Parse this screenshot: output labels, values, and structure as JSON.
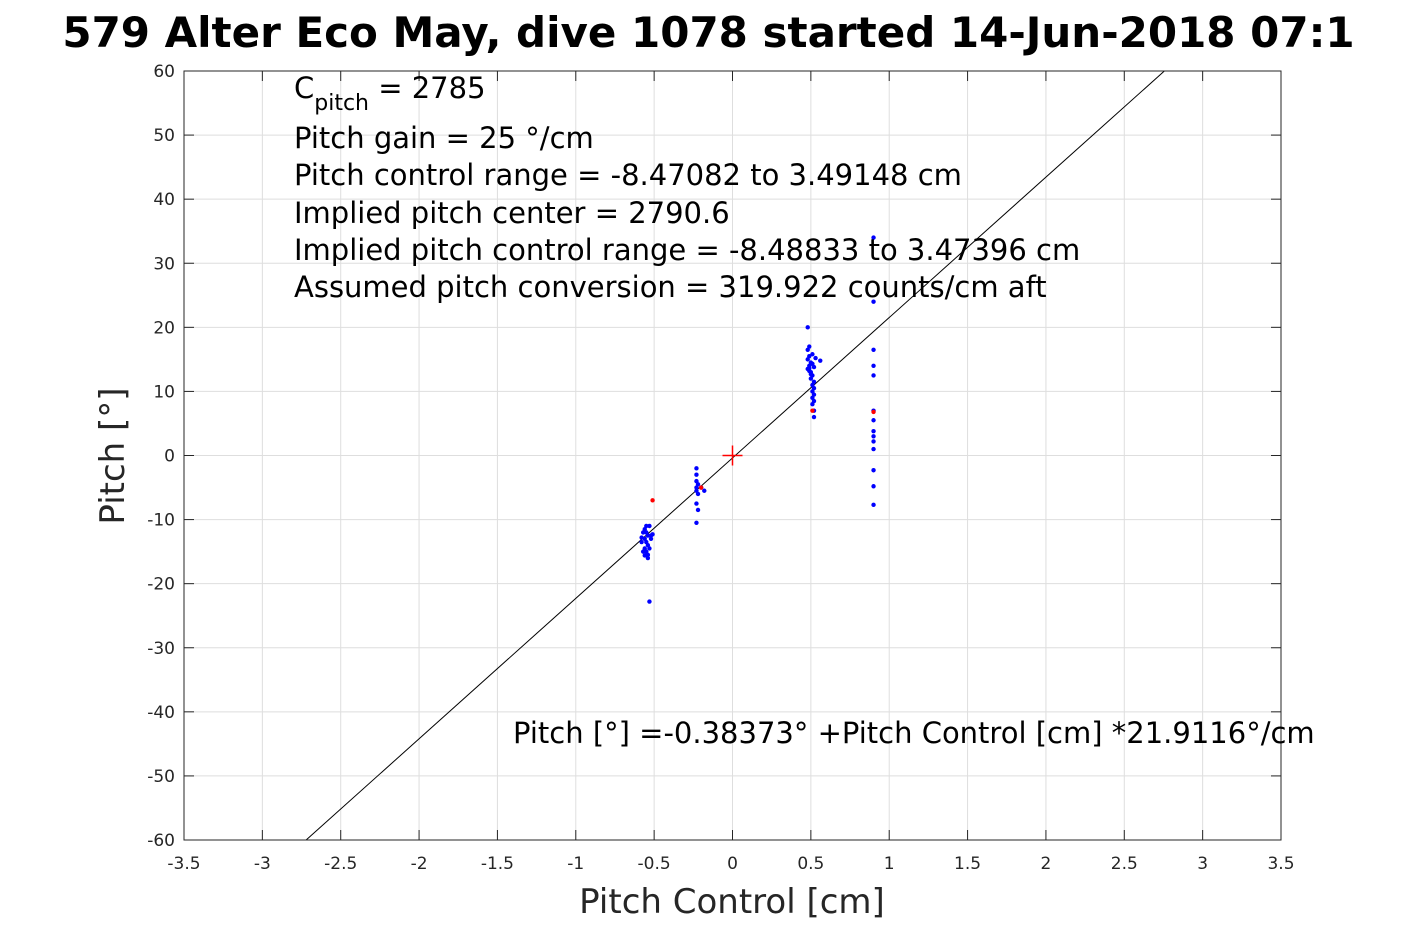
{
  "chart_data": {
    "type": "scatter",
    "title": "579 Alter Eco May, dive 1078 started 14-Jun-2018 07:1",
    "xlabel": "Pitch Control [cm]",
    "ylabel": "Pitch [°]",
    "xlim": [
      -3.5,
      3.5
    ],
    "ylim": [
      -60,
      60
    ],
    "xticks": [
      -3.5,
      -3,
      -2.5,
      -2,
      -1.5,
      -1,
      -0.5,
      0,
      0.5,
      1,
      1.5,
      2,
      2.5,
      3,
      3.5
    ],
    "xtick_labels": [
      "-3.5",
      "-3",
      "-2.5",
      "-2",
      "-1.5",
      "-1",
      "-0.5",
      "0",
      "0.5",
      "1",
      "1.5",
      "2",
      "2.5",
      "3",
      "3.5"
    ],
    "yticks": [
      60,
      50,
      40,
      30,
      20,
      10,
      0,
      -10,
      -20,
      -30,
      -40,
      -50,
      -60
    ],
    "ytick_labels": [
      "60",
      "50",
      "40",
      "30",
      "20",
      "10",
      "0",
      "-10",
      "-20",
      "-30",
      "-40",
      "-50",
      "-60"
    ],
    "grid": true,
    "annotations": {
      "cpitch_base": "C",
      "cpitch_sub": "pitch",
      "cpitch_value": " = 2785",
      "lines": [
        "Pitch gain = 25 °/cm",
        "Pitch control range = -8.47082 to 3.49148 cm",
        "Implied pitch center = 2790.6",
        "Implied pitch control range = -8.48833 to 3.47396 cm",
        "Assumed pitch conversion = 319.922 counts/cm aft"
      ],
      "fit_equation": "Pitch [°] =-0.38373° +Pitch Control [cm] *21.9116°/cm"
    },
    "fit_line": {
      "intercept": -0.38373,
      "slope": 21.9116,
      "color": "#000000"
    },
    "center_marker": {
      "x": 0,
      "y": 0,
      "color": "#ff0000"
    },
    "series": [
      {
        "color": "#0000ff",
        "points": [
          [
            -0.56,
            -11.5
          ],
          [
            -0.55,
            -12
          ],
          [
            -0.54,
            -12.5
          ],
          [
            -0.56,
            -13
          ],
          [
            -0.55,
            -13.5
          ],
          [
            -0.54,
            -14
          ],
          [
            -0.56,
            -14.5
          ],
          [
            -0.55,
            -15
          ],
          [
            -0.54,
            -15.5
          ],
          [
            -0.57,
            -12
          ],
          [
            -0.53,
            -11
          ],
          [
            -0.52,
            -12.5
          ],
          [
            -0.58,
            -13.5
          ],
          [
            -0.53,
            -14.5
          ],
          [
            -0.57,
            -15
          ],
          [
            -0.52,
            -13
          ],
          [
            -0.55,
            -11
          ],
          [
            -0.54,
            -16
          ],
          [
            -0.53,
            -22.8
          ],
          [
            -0.51,
            -12.3
          ],
          [
            -0.58,
            -12.8
          ],
          [
            -0.56,
            -15.6
          ],
          [
            -0.23,
            -2
          ],
          [
            -0.23,
            -3
          ],
          [
            -0.23,
            -4
          ],
          [
            -0.22,
            -4.5
          ],
          [
            -0.23,
            -5
          ],
          [
            -0.23,
            -5.5
          ],
          [
            -0.22,
            -6
          ],
          [
            -0.23,
            -7.5
          ],
          [
            -0.22,
            -8.5
          ],
          [
            -0.23,
            -10.5
          ],
          [
            -0.18,
            -5.5
          ],
          [
            -0.2,
            -5
          ],
          [
            0.48,
            20
          ],
          [
            0.49,
            17
          ],
          [
            0.48,
            16.5
          ],
          [
            0.49,
            15.5
          ],
          [
            0.48,
            15
          ],
          [
            0.5,
            14.5
          ],
          [
            0.49,
            14
          ],
          [
            0.48,
            13.5
          ],
          [
            0.5,
            13
          ],
          [
            0.51,
            12.5
          ],
          [
            0.49,
            13.2
          ],
          [
            0.52,
            13.8
          ],
          [
            0.51,
            14.3
          ],
          [
            0.5,
            12
          ],
          [
            0.52,
            11.5
          ],
          [
            0.51,
            11
          ],
          [
            0.52,
            10.5
          ],
          [
            0.51,
            10
          ],
          [
            0.52,
            9.5
          ],
          [
            0.51,
            9
          ],
          [
            0.52,
            8.5
          ],
          [
            0.51,
            8
          ],
          [
            0.52,
            7
          ],
          [
            0.52,
            6
          ],
          [
            0.51,
            15.8
          ],
          [
            0.53,
            15.2
          ],
          [
            0.56,
            14.8
          ],
          [
            0.5,
            12.7
          ],
          [
            0.49,
            13.6
          ],
          [
            0.9,
            34
          ],
          [
            0.9,
            24
          ],
          [
            0.9,
            16.5
          ],
          [
            0.9,
            14
          ],
          [
            0.9,
            12.5
          ],
          [
            0.9,
            7
          ],
          [
            0.9,
            5.5
          ],
          [
            0.9,
            3.8
          ],
          [
            0.9,
            3
          ],
          [
            0.9,
            2.2
          ],
          [
            0.9,
            1
          ],
          [
            0.9,
            -2.3
          ],
          [
            0.9,
            -4.8
          ],
          [
            0.9,
            -7.7
          ]
        ]
      },
      {
        "color": "#ff0000",
        "points": [
          [
            -0.51,
            -7
          ],
          [
            0.51,
            7
          ],
          [
            0.9,
            6.8
          ],
          [
            -0.2,
            -5
          ]
        ]
      }
    ]
  }
}
